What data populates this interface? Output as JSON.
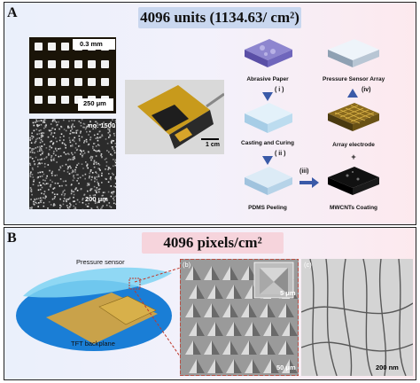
{
  "panel_a": {
    "label": "A",
    "title": "4096 units (1134.63/ cm²)",
    "micro_top": {
      "scale": "0.3 mm",
      "scale2": "250 μm"
    },
    "micro_bottom": {
      "tag": "no. 1500",
      "scale": "200 μm"
    },
    "photo": {
      "scale": "1 cm"
    },
    "process": {
      "abrasive": "Abrasive Paper",
      "array": "Pressure Sensor Array",
      "casting": "Casting and Curing",
      "electrode": "Array electrode",
      "pdms": "PDMS Peeling",
      "mwcnt": "MWCNTs Coating",
      "step_i": "( i )",
      "step_ii": "( ii )",
      "step_iii": "(iii)",
      "step_iv": "(iv)",
      "plus": "+"
    }
  },
  "panel_b": {
    "label": "B",
    "title": "4096 pixels/cm²",
    "device": {
      "pressure": "Pressure sensor",
      "tft": "TFT backplane"
    },
    "sem_b": {
      "tag": "(b)",
      "scale": "5 μm",
      "scale2": "50 μm"
    },
    "sem_c": {
      "tag": "(c)",
      "scale": "200 nm"
    }
  },
  "colors": {
    "banner_a": "#c9d7ef",
    "banner_b": "#f6d4dc",
    "arrow": "#3a5aa8",
    "outline_red": "#c0392b"
  }
}
